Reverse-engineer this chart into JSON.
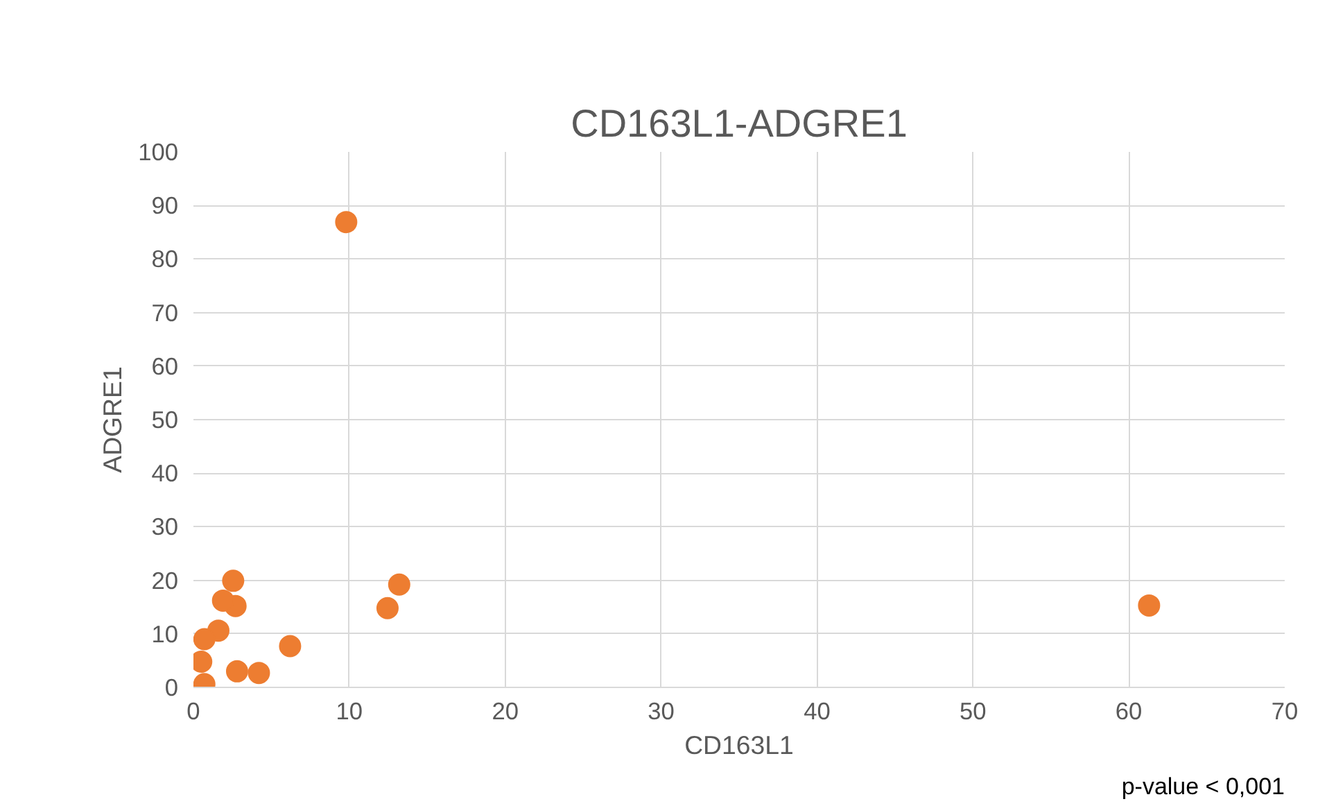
{
  "chart_data": {
    "type": "scatter",
    "title": "CD163L1-ADGRE1",
    "xlabel": "CD163L1",
    "ylabel": "ADGRE1",
    "annotations": [
      "p-value < 0,001"
    ],
    "x": [
      9.8,
      13.2,
      12.45,
      61.3,
      6.2,
      4.2,
      2.8,
      2.55,
      2.7,
      1.9,
      1.6,
      0.7,
      0.5,
      0.7
    ],
    "series": [
      {
        "color": "#ed7d31",
        "values": [
          86.9,
          19.2,
          14.8,
          15.3,
          7.7,
          2.7,
          3.0,
          19.9,
          15.2,
          16.2,
          10.6,
          9.0,
          4.8,
          0.6
        ]
      }
    ],
    "marker": "circle",
    "grid": true,
    "xlim": [
      0,
      70
    ],
    "xticks": [
      0,
      10,
      20,
      30,
      40,
      50,
      60,
      70
    ],
    "ylim": [
      0,
      100
    ],
    "yticks": [
      0,
      10,
      20,
      30,
      40,
      50,
      60,
      70,
      80,
      90,
      100
    ]
  }
}
